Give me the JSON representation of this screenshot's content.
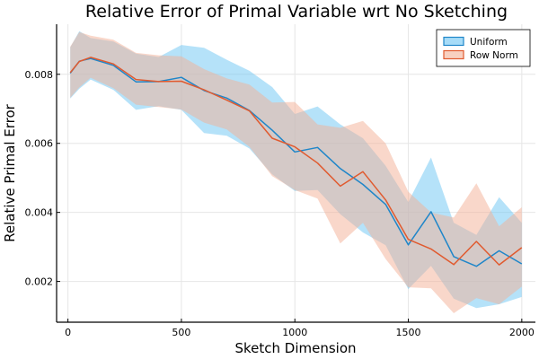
{
  "chart_data": {
    "type": "line",
    "title": "Relative Error of Primal Variable wrt No Sketching",
    "xlabel": "Sketch Dimension",
    "ylabel": "Relative Primal Error",
    "xlim": [
      -50,
      2060
    ],
    "ylim": [
      0.00082,
      0.00945
    ],
    "xticks": [
      0,
      500,
      1000,
      1500,
      2000
    ],
    "xtick_labels": [
      "0",
      "500",
      "1000",
      "1500",
      "2000"
    ],
    "yticks": [
      0.002,
      0.004,
      0.006,
      0.008
    ],
    "ytick_labels": [
      "0.002",
      "0.004",
      "0.006",
      "0.008"
    ],
    "grid": true,
    "legend_position": "top-right",
    "x": [
      10,
      50,
      100,
      200,
      300,
      400,
      500,
      600,
      700,
      800,
      900,
      1000,
      1100,
      1200,
      1300,
      1400,
      1500,
      1600,
      1700,
      1800,
      1900,
      2000
    ],
    "series": [
      {
        "name": "Uniform",
        "color": "#1f86c9",
        "band_color": "#6cc5f3",
        "values": [
          0.00803,
          0.00838,
          0.00846,
          0.00826,
          0.00778,
          0.00779,
          0.00791,
          0.00753,
          0.00731,
          0.00695,
          0.00638,
          0.00575,
          0.00588,
          0.00527,
          0.00481,
          0.00423,
          0.00306,
          0.00402,
          0.00272,
          0.00244,
          0.00289,
          0.00251
        ],
        "upper": [
          0.00878,
          0.00925,
          0.00905,
          0.00895,
          0.0086,
          0.0085,
          0.00885,
          0.00877,
          0.00842,
          0.0081,
          0.00763,
          0.00685,
          0.00707,
          0.00655,
          0.00615,
          0.00535,
          0.0043,
          0.00559,
          0.0037,
          0.00335,
          0.00444,
          0.0037
        ],
        "lower": [
          0.0073,
          0.00758,
          0.00785,
          0.00755,
          0.00697,
          0.00708,
          0.00697,
          0.0063,
          0.00622,
          0.00585,
          0.0051,
          0.00462,
          0.00465,
          0.00395,
          0.00342,
          0.00305,
          0.00178,
          0.00245,
          0.0015,
          0.00123,
          0.00134,
          0.00155
        ]
      },
      {
        "name": "Row Norm",
        "color": "#e05a2f",
        "band_color": "#f4b096",
        "values": [
          0.00805,
          0.00837,
          0.00849,
          0.0083,
          0.00785,
          0.00779,
          0.0078,
          0.00755,
          0.00725,
          0.00694,
          0.00615,
          0.0059,
          0.00543,
          0.00476,
          0.00518,
          0.00436,
          0.00322,
          0.00294,
          0.00249,
          0.00316,
          0.00248,
          0.00298
        ],
        "upper": [
          0.0088,
          0.00922,
          0.00912,
          0.009,
          0.00862,
          0.00855,
          0.00852,
          0.00815,
          0.00788,
          0.0077,
          0.00718,
          0.0072,
          0.00655,
          0.00645,
          0.00665,
          0.006,
          0.0046,
          0.004,
          0.00385,
          0.00484,
          0.0036,
          0.00415
        ],
        "lower": [
          0.00732,
          0.00762,
          0.0079,
          0.0076,
          0.00712,
          0.00705,
          0.00698,
          0.0066,
          0.0064,
          0.0059,
          0.00505,
          0.00465,
          0.0044,
          0.0031,
          0.0037,
          0.00265,
          0.00183,
          0.0018,
          0.00108,
          0.00152,
          0.00134,
          0.00185
        ]
      }
    ]
  }
}
